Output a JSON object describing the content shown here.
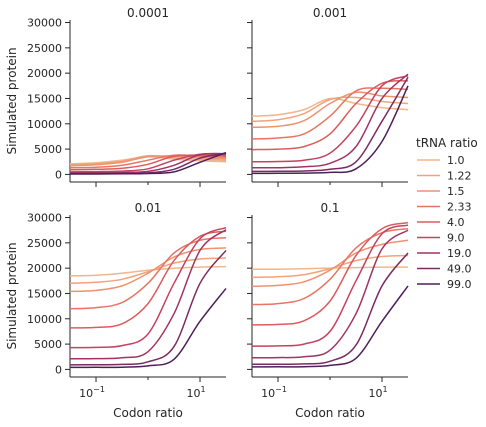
{
  "chart_data": {
    "type": "line",
    "xscale": "log",
    "xlim": [
      0.0316,
      31.6
    ],
    "ylim": [
      -1500,
      30500
    ],
    "grid": false,
    "ylabel": "Simulated protein",
    "xlabel": "Codon ratio",
    "xtick_labels": [
      "10",
      "10"
    ],
    "xtick_exponents": [
      "−1",
      "1"
    ],
    "ytick_labels": [
      "0",
      "5000",
      "10000",
      "15000",
      "20000",
      "25000",
      "30000"
    ],
    "legend": {
      "title": "tRNA ratio",
      "placement": "center-right",
      "entries": [
        "1.0",
        "1.22",
        "1.5",
        "2.33",
        "4.0",
        "9.0",
        "19.0",
        "49.0",
        "99.0"
      ]
    },
    "series_colors": [
      "#f2b68a",
      "#f0a37c",
      "#ee9270",
      "#e67663",
      "#dc5c5d",
      "#c54260",
      "#a23464",
      "#7b2b63",
      "#4e1f5a"
    ],
    "x": [
      0.0316,
      0.1,
      0.316,
      1,
      3.16,
      10,
      31.6
    ],
    "panels": [
      {
        "title": "0.0001",
        "series": [
          {
            "name": "1.0",
            "values": [
              2100,
              2300,
              2800,
              3500,
              3000,
              2700,
              2500
            ]
          },
          {
            "name": "1.22",
            "values": [
              1900,
              2100,
              2600,
              3700,
              3300,
              3000,
              2800
            ]
          },
          {
            "name": "1.5",
            "values": [
              1700,
              1900,
              2400,
              3500,
              3600,
              3300,
              3100
            ]
          },
          {
            "name": "2.33",
            "values": [
              1300,
              1400,
              1800,
              2800,
              3800,
              3600,
              3400
            ]
          },
          {
            "name": "4.0",
            "values": [
              900,
              1000,
              1200,
              2000,
              3600,
              3800,
              3700
            ]
          },
          {
            "name": "9.0",
            "values": [
              500,
              550,
              650,
              1100,
              2800,
              4000,
              3900
            ]
          },
          {
            "name": "19.0",
            "values": [
              300,
              320,
              380,
              600,
              1800,
              3900,
              4100
            ]
          },
          {
            "name": "49.0",
            "values": [
              150,
              160,
              190,
              300,
              1000,
              3200,
              4200
            ]
          },
          {
            "name": "99.0",
            "values": [
              80,
              90,
              110,
              180,
              500,
              2400,
              4300
            ]
          }
        ]
      },
      {
        "title": "0.001",
        "series": [
          {
            "name": "1.0",
            "values": [
              11500,
              11800,
              12800,
              15000,
              14000,
              13200,
              12800
            ]
          },
          {
            "name": "1.22",
            "values": [
              10500,
              10800,
              12000,
              14800,
              15200,
              14400,
              14000
            ]
          },
          {
            "name": "1.5",
            "values": [
              9300,
              9500,
              10600,
              14000,
              16200,
              15500,
              15200
            ]
          },
          {
            "name": "2.33",
            "values": [
              7000,
              7200,
              8000,
              11500,
              16500,
              17000,
              16800
            ]
          },
          {
            "name": "4.0",
            "values": [
              4900,
              5000,
              5500,
              8000,
              14000,
              18000,
              18500
            ]
          },
          {
            "name": "9.0",
            "values": [
              2500,
              2550,
              2800,
              4200,
              9500,
              17500,
              19500
            ]
          },
          {
            "name": "19.0",
            "values": [
              1300,
              1330,
              1500,
              2200,
              5500,
              15000,
              19800
            ]
          },
          {
            "name": "49.0",
            "values": [
              600,
              620,
              680,
              1000,
              2500,
              10500,
              19200
            ]
          },
          {
            "name": "99.0",
            "values": [
              200,
              220,
              260,
              400,
              1100,
              6500,
              17500
            ]
          }
        ]
      },
      {
        "title": "0.01",
        "series": [
          {
            "name": "1.0",
            "values": [
              18500,
              18600,
              19000,
              19600,
              20000,
              20200,
              20300
            ]
          },
          {
            "name": "1.22",
            "values": [
              17000,
              17200,
              17800,
              19300,
              21000,
              21800,
              22000
            ]
          },
          {
            "name": "1.5",
            "values": [
              15400,
              15600,
              16500,
              19000,
              22200,
              23700,
              24000
            ]
          },
          {
            "name": "2.33",
            "values": [
              12000,
              12200,
              13200,
              17000,
              23000,
              25500,
              26000
            ]
          },
          {
            "name": "4.0",
            "values": [
              8200,
              8300,
              9000,
              13000,
              21500,
              26300,
              27300
            ]
          },
          {
            "name": "9.0",
            "values": [
              4300,
              4350,
              4700,
              7000,
              17000,
              25800,
              28000
            ]
          },
          {
            "name": "19.0",
            "values": [
              2100,
              2130,
              2300,
              3500,
              11000,
              23500,
              27600
            ]
          },
          {
            "name": "49.0",
            "values": [
              900,
              920,
              980,
              1500,
              4500,
              17000,
              23500
            ]
          },
          {
            "name": "99.0",
            "values": [
              400,
              410,
              440,
              700,
              2000,
              9500,
              16000
            ]
          }
        ]
      },
      {
        "title": "0.1",
        "series": [
          {
            "name": "1.0",
            "values": [
              19800,
              19800,
              19900,
              20000,
              20100,
              20200,
              20200
            ]
          },
          {
            "name": "1.22",
            "values": [
              18200,
              18300,
              18700,
              19900,
              21500,
              22300,
              22500
            ]
          },
          {
            "name": "1.5",
            "values": [
              16400,
              16600,
              17300,
              19600,
              23000,
              24700,
              25500
            ]
          },
          {
            "name": "2.33",
            "values": [
              12800,
              13000,
              14000,
              17800,
              24000,
              27000,
              27800
            ]
          },
          {
            "name": "4.0",
            "values": [
              8800,
              8900,
              9600,
              13500,
              22500,
              27800,
              29000
            ]
          },
          {
            "name": "9.0",
            "values": [
              4600,
              4650,
              5000,
              7500,
              17500,
              26800,
              28500
            ]
          },
          {
            "name": "19.0",
            "values": [
              2300,
              2330,
              2500,
              3800,
              11000,
              23800,
              27500
            ]
          },
          {
            "name": "49.0",
            "values": [
              1000,
              1020,
              1080,
              1600,
              4800,
              16500,
              23000
            ]
          },
          {
            "name": "99.0",
            "values": [
              500,
              510,
              540,
              800,
              2200,
              9500,
              16500
            ]
          }
        ]
      }
    ]
  }
}
